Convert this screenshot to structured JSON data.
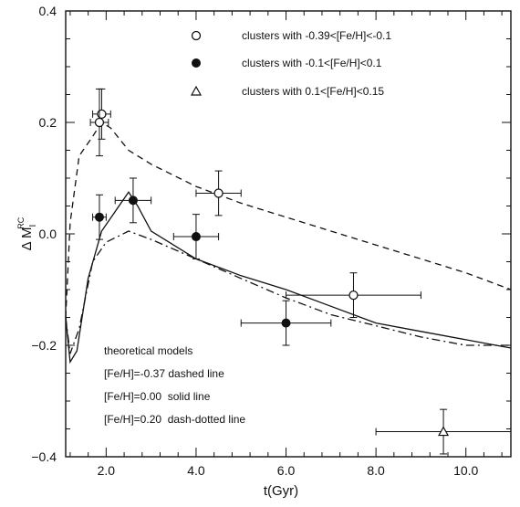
{
  "chart_data": {
    "type": "scatter",
    "xlim": [
      1.1,
      11.0
    ],
    "ylim": [
      -0.4,
      0.4
    ],
    "grid": false,
    "legend_position": "top-center",
    "x_ticks": [
      {
        "value": 2.0,
        "label": "2.0"
      },
      {
        "value": 4.0,
        "label": "4.0"
      },
      {
        "value": 6.0,
        "label": "6.0"
      },
      {
        "value": 8.0,
        "label": "8.0"
      },
      {
        "value": 10.0,
        "label": "10.0"
      }
    ],
    "y_ticks": [
      {
        "value": 0.4,
        "label": "0.4"
      },
      {
        "value": 0.2,
        "label": "0.2"
      },
      {
        "value": 0.0,
        "label": "0.0"
      },
      {
        "value": -0.2,
        "label": "−0.2"
      },
      {
        "value": -0.4,
        "label": "−0.4"
      }
    ],
    "xlabel": "t(Gyr)",
    "ylabel_main": "Δ M",
    "ylabel_sub": "I",
    "ylabel_sup": "RC",
    "legend": [
      {
        "marker": "open-circle",
        "label": "clusters with -0.39<[Fe/H]<-0.1"
      },
      {
        "marker": "filled-circle",
        "label": "clusters with -0.1<[Fe/H]<0.1"
      },
      {
        "marker": "open-triangle",
        "label": "clusters with 0.1<[Fe/H]<0.15"
      }
    ],
    "series": [
      {
        "marker": "open-circle",
        "points": [
          {
            "x": 1.9,
            "y": 0.215,
            "xerr": 0.2,
            "yerr": 0.045
          },
          {
            "x": 1.85,
            "y": 0.2,
            "xerr": 0.2,
            "yerr": 0.06
          },
          {
            "x": 4.5,
            "y": 0.073,
            "xerr": 0.5,
            "yerr": 0.04
          },
          {
            "x": 7.5,
            "y": -0.11,
            "xerr": 1.5,
            "yerr": 0.04
          }
        ]
      },
      {
        "marker": "filled-circle",
        "points": [
          {
            "x": 1.85,
            "y": 0.03,
            "xerr": 0.15,
            "yerr": 0.04
          },
          {
            "x": 2.6,
            "y": 0.06,
            "xerr": 0.4,
            "yerr": 0.04
          },
          {
            "x": 4.0,
            "y": -0.005,
            "xerr": 0.5,
            "yerr": 0.04
          },
          {
            "x": 6.0,
            "y": -0.16,
            "xerr": 1.0,
            "yerr": 0.04
          }
        ]
      },
      {
        "marker": "open-triangle",
        "points": [
          {
            "x": 9.5,
            "y": -0.355,
            "xerr": 1.5,
            "yerr": 0.04
          }
        ]
      }
    ],
    "model_lines": [
      {
        "style": "dashed",
        "points": [
          [
            1.1,
            -0.15
          ],
          [
            1.2,
            0.02
          ],
          [
            1.4,
            0.14
          ],
          [
            1.7,
            0.175
          ],
          [
            1.9,
            0.2
          ],
          [
            2.1,
            0.19
          ],
          [
            2.5,
            0.15
          ],
          [
            3.0,
            0.125
          ],
          [
            4.0,
            0.085
          ],
          [
            5.0,
            0.055
          ],
          [
            6.0,
            0.03
          ],
          [
            7.0,
            0.005
          ],
          [
            8.0,
            -0.02
          ],
          [
            9.0,
            -0.045
          ],
          [
            10.0,
            -0.07
          ],
          [
            11.0,
            -0.1
          ]
        ]
      },
      {
        "style": "solid",
        "points": [
          [
            1.1,
            -0.15
          ],
          [
            1.2,
            -0.23
          ],
          [
            1.35,
            -0.21
          ],
          [
            1.6,
            -0.08
          ],
          [
            1.9,
            0.005
          ],
          [
            2.2,
            0.04
          ],
          [
            2.5,
            0.075
          ],
          [
            2.7,
            0.05
          ],
          [
            3.0,
            0.005
          ],
          [
            4.0,
            -0.045
          ],
          [
            5.0,
            -0.075
          ],
          [
            6.0,
            -0.1
          ],
          [
            7.0,
            -0.13
          ],
          [
            8.0,
            -0.16
          ],
          [
            9.0,
            -0.175
          ],
          [
            10.0,
            -0.19
          ],
          [
            11.0,
            -0.205
          ]
        ]
      },
      {
        "style": "dash-dot",
        "points": [
          [
            1.1,
            -0.15
          ],
          [
            1.2,
            -0.215
          ],
          [
            1.4,
            -0.17
          ],
          [
            1.7,
            -0.05
          ],
          [
            2.0,
            -0.015
          ],
          [
            2.5,
            0.005
          ],
          [
            3.0,
            -0.01
          ],
          [
            4.0,
            -0.045
          ],
          [
            5.0,
            -0.08
          ],
          [
            6.0,
            -0.115
          ],
          [
            7.0,
            -0.145
          ],
          [
            8.0,
            -0.165
          ],
          [
            9.0,
            -0.185
          ],
          [
            10.0,
            -0.2
          ],
          [
            11.0,
            -0.2
          ]
        ]
      }
    ],
    "notes": [
      "theoretical models",
      "[Fe/H]=-0.37 dashed line",
      "[Fe/H]=0.00  solid line",
      "[Fe/H]=0.20  dash-dotted line"
    ]
  }
}
